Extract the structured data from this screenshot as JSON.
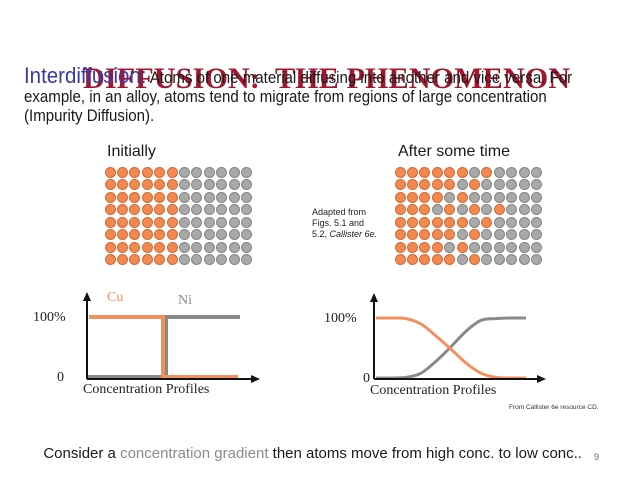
{
  "slide": {
    "title": "DIFFUSION:  THE PHENOMENON",
    "title_color": "#a01830",
    "intro": {
      "keyword": "Interdiffusion",
      "keyword_color": "#3a3aa0",
      "colon": ":",
      "text": " Atoms of one material diffusing into another and vice versa. For example, in an alloy, atoms tend to migrate from regions of large concentration (Impurity Diffusion)."
    },
    "page_number": "9"
  },
  "colors": {
    "cu_fill": "#f4894f",
    "cu_border": "#d06a38",
    "ni_fill": "#a9a9a9",
    "ni_border": "#858585",
    "cu_line": "#f4905e",
    "ni_line": "#8a8a8a"
  },
  "lattices": {
    "initial": {
      "label": "Initially",
      "rows": [
        "OOOOOOGGGGGG",
        "OOOOOOGGGGGG",
        "OOOOOOGGGGGG",
        "OOOOOOGGGGGG",
        "OOOOOOGGGGGG",
        "OOOOOOGGGGGG",
        "OOOOOOGGGGGG",
        "OOOOOOGGGGGG"
      ]
    },
    "after": {
      "label": "After some time",
      "rows": [
        "OOOOOOGOGGGG",
        "OOOOOGOGGGGG",
        "OOOOGOGGGGGG",
        "OOOGOGOGOGGG",
        "OOOOOOGOGGGG",
        "OOOOOGOGGGGG",
        "OOOOGOGGGGGG",
        "OOOOOGOGGGGG"
      ]
    },
    "credit": {
      "line1": "Adapted from",
      "line2": "Figs. 5.1 and",
      "line3_plain": "5.2, ",
      "line3_italic": "Callister 6e."
    }
  },
  "chart_data": [
    {
      "type": "line",
      "title": "",
      "xlabel": "Concentration Profiles",
      "ylabel": "",
      "yticks": [
        "0",
        "100%"
      ],
      "legend": [
        "Cu",
        "Ni"
      ],
      "x": [
        0,
        0.5,
        0.5,
        1
      ],
      "series": [
        {
          "name": "Cu",
          "values": [
            100,
            100,
            0,
            0
          ]
        },
        {
          "name": "Ni",
          "values": [
            0,
            0,
            100,
            100
          ]
        }
      ],
      "ylim": [
        0,
        100
      ],
      "grid": false,
      "description": "Initial step profile: Cu 100% on left half, Ni 100% on right half"
    },
    {
      "type": "line",
      "title": "",
      "xlabel": "Concentration Profiles",
      "ylabel": "",
      "yticks": [
        "0",
        "100%"
      ],
      "x": [
        0,
        0.1,
        0.2,
        0.3,
        0.4,
        0.5,
        0.6,
        0.7,
        0.8,
        0.9,
        1.0
      ],
      "series": [
        {
          "name": "Cu",
          "values": [
            100,
            100,
            99,
            90,
            70,
            48,
            25,
            8,
            1,
            0,
            0
          ]
        },
        {
          "name": "Ni",
          "values": [
            0,
            0,
            1,
            8,
            28,
            52,
            78,
            96,
            99,
            100,
            100
          ]
        }
      ],
      "ylim": [
        0,
        100
      ],
      "grid": false,
      "description": "After diffusion: smooth sigmoid profiles crossing near 50%"
    }
  ],
  "source_note": "From Callister 6e resource CD.",
  "bottom_line": {
    "before": "Consider a ",
    "highlight": "concentration gradient",
    "highlight_color": "#8a8a8a",
    "after": " then atoms move from high conc. to low conc.."
  }
}
